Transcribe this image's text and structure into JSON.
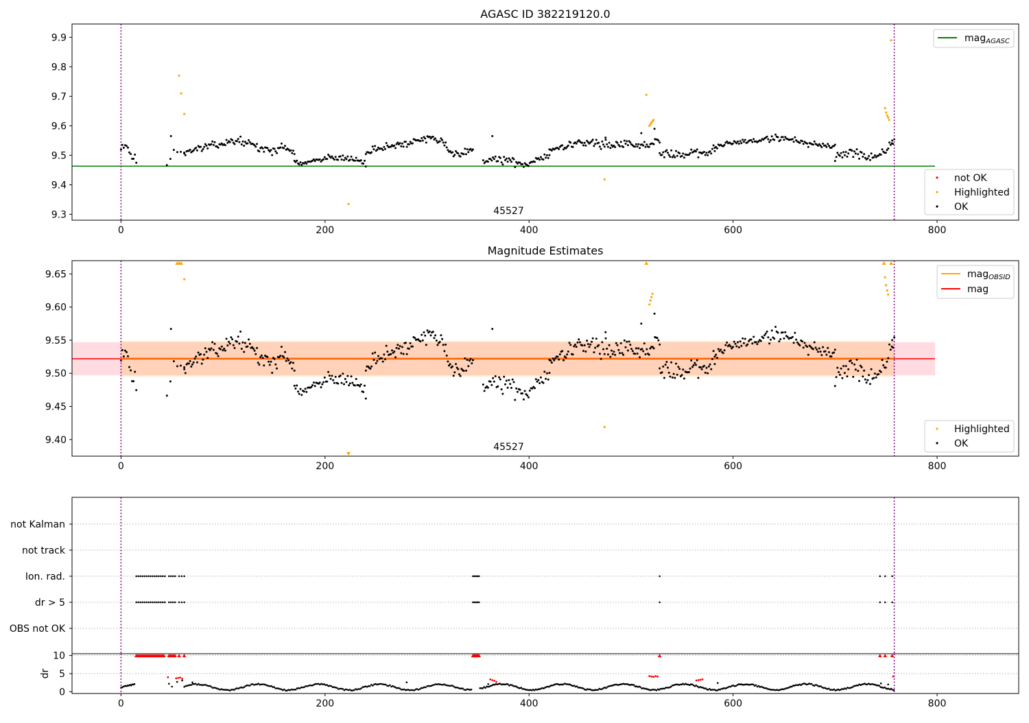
{
  "chart_data": [
    {
      "type": "scatter",
      "title": "AGASC ID 382219120.0",
      "xlim": [
        -48,
        880
      ],
      "ylim": [
        9.28,
        9.945
      ],
      "xticks": [
        0,
        200,
        400,
        600,
        800
      ],
      "yticks": [
        9.3,
        9.4,
        9.5,
        9.6,
        9.7,
        9.8,
        9.9
      ],
      "obsid_label": "45527",
      "obsid_label_x": 380,
      "obs_boundaries": [
        0,
        758
      ],
      "agasc_mag": 9.463,
      "agasc_line_x": [
        -48,
        798
      ],
      "legend_lines": [
        {
          "name": "mag",
          "sub": "AGASC",
          "color": "#008000"
        }
      ],
      "legend_points": [
        {
          "name": "not OK",
          "color": "#ff0000"
        },
        {
          "name": "Highlighted",
          "color": "#ffa500"
        },
        {
          "name": "OK",
          "color": "#000000"
        }
      ],
      "highlighted": [
        [
          57,
          9.77
        ],
        [
          59,
          9.71
        ],
        [
          62,
          9.64
        ],
        [
          223,
          9.335
        ],
        [
          474,
          9.418
        ],
        [
          515,
          9.705
        ],
        [
          518,
          9.6
        ],
        [
          519,
          9.605
        ],
        [
          520,
          9.61
        ],
        [
          521,
          9.615
        ],
        [
          522,
          9.62
        ],
        [
          749,
          9.66
        ],
        [
          750,
          9.645
        ],
        [
          751,
          9.635
        ],
        [
          752,
          9.628
        ],
        [
          753,
          9.62
        ],
        [
          755,
          9.89
        ]
      ],
      "ok_segments": [
        {
          "x0": 0,
          "x1": 15,
          "n": 12,
          "means": [
            9.53,
            9.54,
            9.5,
            9.48
          ],
          "noise": 0.012,
          "seed": 11
        },
        {
          "x0": 45,
          "x1": 62,
          "n": 6,
          "means": [
            9.5,
            9.52
          ],
          "noise": 0.028,
          "seed": 12
        },
        {
          "x0": 62,
          "x1": 170,
          "n": 95,
          "means": [
            9.51,
            9.52,
            9.53,
            9.535,
            9.545,
            9.55,
            9.54,
            9.52,
            9.515,
            9.53,
            9.51
          ],
          "noise": 0.008,
          "seed": 13
        },
        {
          "x0": 170,
          "x1": 240,
          "n": 60,
          "means": [
            9.485,
            9.47,
            9.49,
            9.495,
            9.49,
            9.485,
            9.47
          ],
          "noise": 0.009,
          "seed": 14
        },
        {
          "x0": 240,
          "x1": 345,
          "n": 95,
          "means": [
            9.51,
            9.52,
            9.53,
            9.535,
            9.54,
            9.55,
            9.56,
            9.55,
            9.51,
            9.505,
            9.52
          ],
          "noise": 0.008,
          "seed": 15
        },
        {
          "x0": 355,
          "x1": 420,
          "n": 55,
          "means": [
            9.48,
            9.49,
            9.48,
            9.475,
            9.47,
            9.49,
            9.5
          ],
          "noise": 0.009,
          "seed": 16
        },
        {
          "x0": 420,
          "x1": 528,
          "n": 95,
          "means": [
            9.52,
            9.53,
            9.54,
            9.545,
            9.54,
            9.535,
            9.54,
            9.53,
            9.535,
            9.55
          ],
          "noise": 0.009,
          "seed": 17
        },
        {
          "x0": 528,
          "x1": 582,
          "n": 48,
          "means": [
            9.51,
            9.505,
            9.5,
            9.51,
            9.505,
            9.52
          ],
          "noise": 0.009,
          "seed": 18
        },
        {
          "x0": 582,
          "x1": 700,
          "n": 100,
          "means": [
            9.53,
            9.54,
            9.545,
            9.55,
            9.555,
            9.56,
            9.55,
            9.54,
            9.535,
            9.53
          ],
          "noise": 0.008,
          "seed": 19
        },
        {
          "x0": 700,
          "x1": 758,
          "n": 50,
          "means": [
            9.49,
            9.5,
            9.51,
            9.505,
            9.495,
            9.49,
            9.52,
            9.55
          ],
          "noise": 0.01,
          "seed": 20
        }
      ],
      "ok_extra": [
        [
          49,
          9.565
        ],
        [
          364,
          9.565
        ],
        [
          475,
          9.56
        ],
        [
          510,
          9.575
        ],
        [
          523,
          9.59
        ],
        [
          756,
          9.55
        ]
      ]
    },
    {
      "type": "scatter",
      "title": "Magnitude Estimates",
      "xlim": [
        -48,
        880
      ],
      "ylim": [
        9.375,
        9.67
      ],
      "xticks": [
        0,
        200,
        400,
        600,
        800
      ],
      "yticks": [
        9.4,
        9.45,
        9.5,
        9.55,
        9.6,
        9.65
      ],
      "obsid_label": "45527",
      "obsid_label_x": 380,
      "obs_boundaries": [
        0,
        758
      ],
      "mag": 9.522,
      "mag_band": [
        9.497,
        9.547
      ],
      "mag_band_x": [
        -48,
        798
      ],
      "mag_obsid_band": [
        9.495,
        9.549
      ],
      "mag_obsid_band_x": [
        0,
        758
      ],
      "band_colors": {
        "mag": "#ffc0cb",
        "mag_obsid": "#ffa500"
      },
      "legend_lines": [
        {
          "name": "mag",
          "sub": "OBSID",
          "color": "#ffa500"
        },
        {
          "name": "mag",
          "sub": "",
          "color": "#ff0000"
        }
      ],
      "legend_points": [
        {
          "name": "Highlighted",
          "color": "#ffa500"
        },
        {
          "name": "OK",
          "color": "#000000"
        }
      ],
      "highlighted": [
        [
          62,
          9.642
        ],
        [
          474,
          9.419
        ],
        [
          518,
          9.604
        ],
        [
          519,
          9.61
        ],
        [
          520,
          9.615
        ],
        [
          521,
          9.62
        ],
        [
          749,
          9.645
        ],
        [
          750,
          9.633
        ],
        [
          751,
          9.625
        ],
        [
          752,
          9.619
        ]
      ],
      "clipped_top": [
        55,
        57,
        59,
        515,
        748,
        755
      ],
      "clipped_bottom": [
        223
      ],
      "ok_segments": [
        {
          "x0": 0,
          "x1": 15,
          "n": 12,
          "means": [
            9.53,
            9.54,
            9.5,
            9.48
          ],
          "noise": 0.012,
          "seed": 11
        },
        {
          "x0": 45,
          "x1": 62,
          "n": 6,
          "means": [
            9.5,
            9.52
          ],
          "noise": 0.028,
          "seed": 12
        },
        {
          "x0": 62,
          "x1": 170,
          "n": 95,
          "means": [
            9.51,
            9.52,
            9.53,
            9.535,
            9.545,
            9.55,
            9.54,
            9.52,
            9.515,
            9.53,
            9.51
          ],
          "noise": 0.008,
          "seed": 13
        },
        {
          "x0": 170,
          "x1": 240,
          "n": 60,
          "means": [
            9.485,
            9.47,
            9.49,
            9.495,
            9.49,
            9.485,
            9.47
          ],
          "noise": 0.009,
          "seed": 14
        },
        {
          "x0": 240,
          "x1": 345,
          "n": 95,
          "means": [
            9.51,
            9.52,
            9.53,
            9.535,
            9.54,
            9.55,
            9.56,
            9.55,
            9.51,
            9.505,
            9.52
          ],
          "noise": 0.008,
          "seed": 15
        },
        {
          "x0": 355,
          "x1": 420,
          "n": 55,
          "means": [
            9.48,
            9.49,
            9.48,
            9.475,
            9.47,
            9.49,
            9.5
          ],
          "noise": 0.009,
          "seed": 16
        },
        {
          "x0": 420,
          "x1": 528,
          "n": 95,
          "means": [
            9.52,
            9.53,
            9.54,
            9.545,
            9.54,
            9.535,
            9.54,
            9.53,
            9.535,
            9.55
          ],
          "noise": 0.009,
          "seed": 17
        },
        {
          "x0": 528,
          "x1": 582,
          "n": 48,
          "means": [
            9.51,
            9.505,
            9.5,
            9.51,
            9.505,
            9.52
          ],
          "noise": 0.009,
          "seed": 18
        },
        {
          "x0": 582,
          "x1": 700,
          "n": 100,
          "means": [
            9.53,
            9.54,
            9.545,
            9.55,
            9.555,
            9.56,
            9.55,
            9.54,
            9.535,
            9.53
          ],
          "noise": 0.008,
          "seed": 19
        },
        {
          "x0": 700,
          "x1": 758,
          "n": 50,
          "means": [
            9.49,
            9.5,
            9.51,
            9.505,
            9.495,
            9.49,
            9.52,
            9.55
          ],
          "noise": 0.01,
          "seed": 20
        }
      ],
      "ok_extra": [
        [
          49,
          9.567
        ],
        [
          364,
          9.567
        ],
        [
          475,
          9.562
        ],
        [
          510,
          9.575
        ],
        [
          523,
          9.59
        ],
        [
          756,
          9.55
        ]
      ]
    },
    {
      "type": "scatter",
      "title": "",
      "xlim": [
        -48,
        880
      ],
      "xticks": [
        0,
        200,
        400,
        600,
        800
      ],
      "obs_boundaries": [
        0,
        758
      ],
      "flag_categories": [
        "OBS not OK",
        "dr > 5",
        "Ion. rad.",
        "not track",
        "not Kalman"
      ],
      "flag_points": {
        "Ion. rad.": {
          "ranges": [
            [
              15,
              43,
              2
            ],
            [
              47,
              54,
              2
            ],
            [
              57,
              62,
              2.5
            ],
            [
              345,
              351,
              1.5
            ]
          ],
          "points": [
            528,
            744,
            749,
            756
          ]
        },
        "dr > 5": {
          "ranges": [
            [
              15,
              43,
              2
            ],
            [
              47,
              54,
              2
            ],
            [
              57,
              62,
              2.5
            ],
            [
              345,
              351,
              1.5
            ]
          ],
          "points": [
            528,
            744,
            749,
            756
          ]
        }
      },
      "dr_ylabel": "dr",
      "dr_ylim": [
        -0.5,
        10.5
      ],
      "dr_yticks": [
        0,
        5,
        10
      ],
      "dr_clip": 10,
      "dr_clipped": {
        "ranges": [
          [
            15,
            43,
            1.5
          ],
          [
            47,
            54,
            1.5
          ],
          [
            345,
            351,
            1
          ]
        ],
        "points": [
          57,
          62,
          528,
          744,
          749,
          756
        ]
      },
      "dr_red_points": [
        [
          46,
          4
        ],
        [
          54,
          3.7
        ],
        [
          56,
          3.8
        ],
        [
          58,
          3.9
        ],
        [
          60,
          3.6
        ],
        [
          362,
          3.4
        ],
        [
          364,
          3.2
        ],
        [
          366,
          3
        ],
        [
          368,
          2.7
        ],
        [
          518,
          4.3
        ],
        [
          520,
          4.2
        ],
        [
          522,
          4.1
        ],
        [
          524,
          4.3
        ],
        [
          526,
          4.2
        ],
        [
          564,
          3.1
        ],
        [
          566,
          3.2
        ],
        [
          568,
          3.3
        ],
        [
          570,
          3.4
        ],
        [
          757,
          4.2
        ]
      ],
      "dr_black": {
        "ranges": [
          [
            0,
            14,
            1.2,
            1.1
          ],
          [
            62,
            344,
            1.25,
            1.4
          ],
          [
            352,
            758,
            1.3,
            1.3
          ]
        ],
        "amp": 0.9,
        "extra": [
          [
            47,
            2.2
          ],
          [
            50,
            1.4
          ],
          [
            55,
            2.7
          ],
          [
            60,
            3.1
          ],
          [
            70,
            2.6
          ],
          [
            280,
            2.6
          ],
          [
            360,
            2.1
          ],
          [
            585,
            2.4
          ],
          [
            745,
            2.3
          ],
          [
            752,
            2.0
          ]
        ]
      }
    }
  ]
}
